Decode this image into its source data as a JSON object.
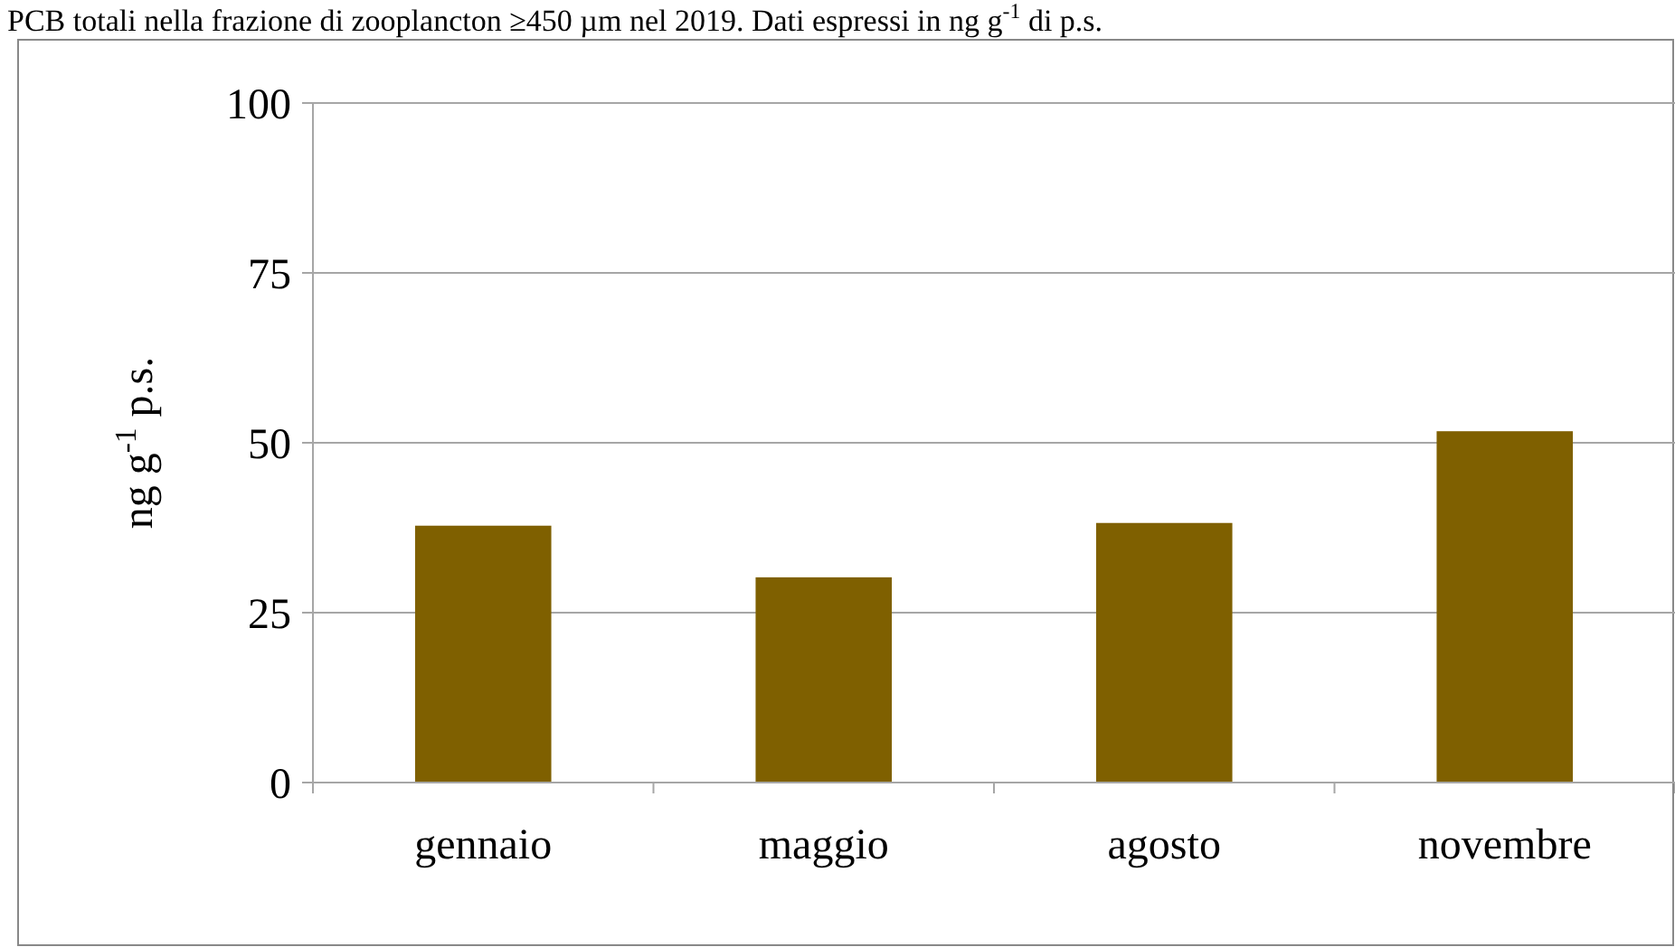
{
  "chart_data": {
    "type": "bar",
    "title": "PCB totali nella frazione di zooplancton ≥450 µm nel 2019. Dati espressi in ng g$^{-1}$ di p.s.",
    "ylabel": "ng g$^{-1}$ p.s.",
    "categories": [
      "gennaio",
      "maggio",
      "agosto",
      "novembre"
    ],
    "values": [
      37.8,
      30.2,
      38.2,
      51.7
    ],
    "color": "#7f6000",
    "ylim": [
      0,
      100
    ],
    "yticks": [
      0,
      25,
      50,
      75,
      100
    ],
    "grid": "y"
  }
}
